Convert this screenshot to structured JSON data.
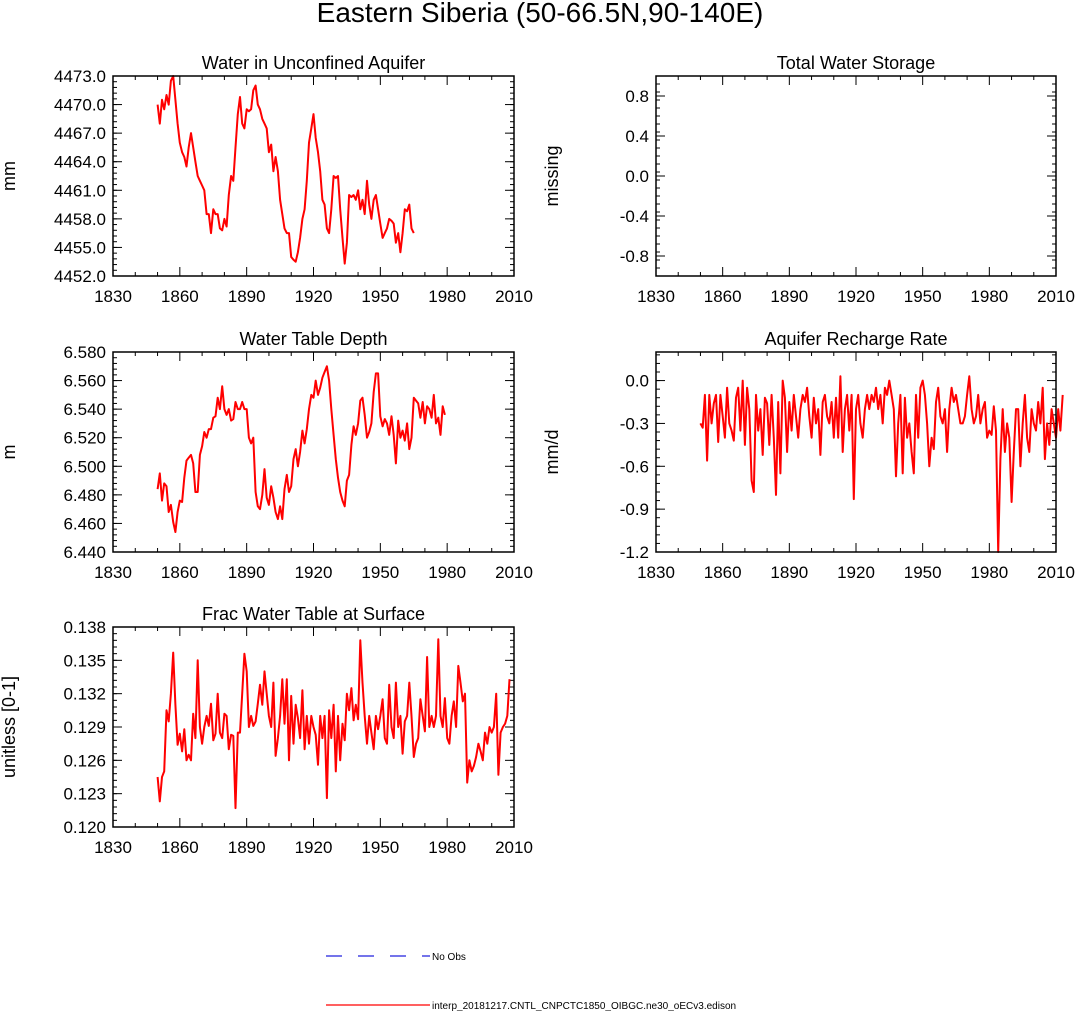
{
  "figure_title": "Eastern Siberia (50-66.5N,90-140E)",
  "legend": {
    "obs_label": "No Obs",
    "obs_color": "#2222dd",
    "model_label": "interp_20181217.CNTL_CNPCTC1850_OIBGC.ne30_oECv3.edison",
    "model_color": "#ff0000"
  },
  "chart_data": [
    {
      "type": "line",
      "title": "Water in Unconfined Aquifer",
      "ylabel": "mm",
      "xlim": [
        1830,
        2010
      ],
      "ylim": [
        4452.0,
        4473.0
      ],
      "xticks": [
        1830,
        1860,
        1890,
        1920,
        1950,
        1980,
        2010
      ],
      "yticks": [
        "4452.0",
        "4455.0",
        "4458.0",
        "4461.0",
        "4464.0",
        "4467.0",
        "4470.0",
        "4473.0"
      ],
      "series": [
        {
          "name": "interp_20181217.CNTL_CNPCTC1850_OIBGC.ne30_oECv3.edison",
          "start_year": 1850,
          "values": [
            4470.0,
            4468.0,
            4470.5,
            4469.5,
            4471.0,
            4470.0,
            4472.5,
            4473.0,
            4470.5,
            4468.0,
            4466.0,
            4465.0,
            4464.5,
            4463.5,
            4465.5,
            4467.0,
            4465.5,
            4464.0,
            4462.5,
            4462.0,
            4461.5,
            4461.0,
            4458.5,
            4458.5,
            4456.5,
            4459.0,
            4458.5,
            4458.5,
            4457.0,
            4456.8,
            4458.0,
            4457.2,
            4460.5,
            4462.5,
            4462.0,
            4465.5,
            4469.0,
            4470.8,
            4468.0,
            4467.5,
            4469.5,
            4469.3,
            4469.5,
            4471.5,
            4472.0,
            4470.0,
            4469.5,
            4468.5,
            4468.0,
            4467.5,
            4465.0,
            4465.8,
            4463.0,
            4464.5,
            4463.0,
            4460.0,
            4458.5,
            4457.0,
            4456.5,
            4456.5,
            4454.0,
            4453.7,
            4453.5,
            4454.5,
            4456.0,
            4458.0,
            4459.0,
            4462.0,
            4466.0,
            4467.5,
            4469.0,
            4466.5,
            4465.0,
            4463.0,
            4460.0,
            4459.5,
            4457.0,
            4456.5,
            4459.0,
            4462.5,
            4462.3,
            4462.5,
            4459.0,
            4456.0,
            4453.3,
            4455.5,
            4460.5,
            4460.3,
            4460.5,
            4460.0,
            4461.0,
            4459.0,
            4460.0,
            4458.5,
            4462.0,
            4459.5,
            4458.0,
            4460.0,
            4460.5,
            4459.0,
            4457.5,
            4456.0,
            4456.5,
            4457.0,
            4458.0,
            4457.8,
            4457.5,
            4455.5,
            4456.5,
            4454.5,
            4456.5,
            4459.0,
            4458.8,
            4459.5,
            4457.0,
            4456.5
          ]
        }
      ]
    },
    {
      "type": "line",
      "title": "Total Water Storage",
      "ylabel": "missing",
      "xlim": [
        1830,
        2010
      ],
      "ylim": [
        -1.0,
        1.0
      ],
      "xticks": [
        1830,
        1860,
        1890,
        1920,
        1950,
        1980,
        2010
      ],
      "yticks": [
        "-0.8",
        "-0.4",
        "0.0",
        "0.4",
        "0.8"
      ],
      "series": []
    },
    {
      "type": "line",
      "title": "Water Table Depth",
      "ylabel": "m",
      "xlim": [
        1830,
        2010
      ],
      "ylim": [
        6.44,
        6.58
      ],
      "xticks": [
        1830,
        1860,
        1890,
        1920,
        1950,
        1980,
        2010
      ],
      "yticks": [
        "6.440",
        "6.460",
        "6.480",
        "6.500",
        "6.520",
        "6.540",
        "6.560",
        "6.580"
      ],
      "series": [
        {
          "name": "interp_20181217.CNTL_CNPCTC1850_OIBGC.ne30_oECv3.edison",
          "start_year": 1850,
          "values": [
            6.484,
            6.495,
            6.476,
            6.488,
            6.486,
            6.468,
            6.473,
            6.461,
            6.454,
            6.468,
            6.476,
            6.475,
            6.492,
            6.504,
            6.506,
            6.508,
            6.502,
            6.482,
            6.482,
            6.508,
            6.514,
            6.524,
            6.52,
            6.526,
            6.526,
            6.534,
            6.535,
            6.548,
            6.54,
            6.556,
            6.54,
            6.536,
            6.54,
            6.532,
            6.533,
            6.545,
            6.54,
            6.54,
            6.545,
            6.54,
            6.54,
            6.52,
            6.516,
            6.52,
            6.482,
            6.472,
            6.47,
            6.48,
            6.498,
            6.478,
            6.473,
            6.486,
            6.478,
            6.468,
            6.463,
            6.472,
            6.463,
            6.484,
            6.494,
            6.482,
            6.486,
            6.505,
            6.512,
            6.5,
            6.51,
            6.525,
            6.516,
            6.526,
            6.54,
            6.55,
            6.548,
            6.56,
            6.55,
            6.555,
            6.562,
            6.566,
            6.57,
            6.56,
            6.54,
            6.522,
            6.505,
            6.492,
            6.482,
            6.476,
            6.472,
            6.49,
            6.494,
            6.515,
            6.528,
            6.522,
            6.53,
            6.546,
            6.548,
            6.536,
            6.52,
            6.524,
            6.53,
            6.552,
            6.565,
            6.565,
            6.535,
            6.528,
            6.533,
            6.53,
            6.522,
            6.535,
            6.522,
            6.502,
            6.532,
            6.52,
            6.525,
            6.518,
            6.53,
            6.512,
            6.52,
            6.548,
            6.546,
            6.544,
            6.534,
            6.545,
            6.53,
            6.542,
            6.54,
            6.534,
            6.55,
            6.53,
            6.534,
            6.522,
            6.542,
            6.536
          ]
        }
      ]
    },
    {
      "type": "line",
      "title": "Aquifer Recharge Rate",
      "ylabel": "mm/d",
      "xlim": [
        1830,
        2010
      ],
      "ylim": [
        -1.2,
        0.2
      ],
      "xticks": [
        1830,
        1860,
        1890,
        1920,
        1950,
        1980,
        2010
      ],
      "yticks": [
        "-1.2",
        "-0.9",
        "-0.6",
        "-0.3",
        "0.0"
      ],
      "series": [
        {
          "name": "interp_20181217.CNTL_CNPCTC1850_OIBGC.ne30_oECv3.edison",
          "start_year": 1850,
          "values": [
            -0.3,
            -0.33,
            -0.1,
            -0.56,
            -0.1,
            -0.3,
            -0.16,
            -0.1,
            -0.43,
            -0.1,
            -0.25,
            -0.4,
            -0.05,
            -0.3,
            -0.35,
            -0.42,
            -0.12,
            -0.05,
            -0.35,
            0.0,
            -0.45,
            -0.05,
            -0.2,
            -0.7,
            -0.78,
            -0.1,
            -0.35,
            -0.2,
            -0.52,
            -0.12,
            -0.16,
            -0.45,
            -0.1,
            -0.4,
            -0.8,
            -0.15,
            -0.65,
            0.0,
            -0.12,
            -0.5,
            -0.15,
            -0.35,
            -0.1,
            -0.25,
            -0.4,
            -0.2,
            -0.1,
            -0.15,
            -0.05,
            -0.25,
            -0.4,
            -0.12,
            -0.3,
            -0.2,
            -0.52,
            -0.15,
            -0.1,
            -0.25,
            -0.3,
            -0.15,
            -0.4,
            -0.12,
            -0.4,
            0.03,
            -0.5,
            -0.2,
            -0.1,
            -0.35,
            -0.1,
            -0.83,
            -0.2,
            -0.1,
            -0.3,
            -0.4,
            -0.2,
            -0.1,
            -0.2,
            -0.1,
            -0.15,
            -0.05,
            -0.2,
            -0.1,
            -0.3,
            -0.05,
            -0.1,
            0.0,
            -0.1,
            -0.2,
            -0.67,
            -0.3,
            -0.1,
            -0.65,
            -0.12,
            -0.4,
            -0.3,
            -0.5,
            -0.65,
            -0.1,
            -0.4,
            -0.05,
            0.0,
            -0.1,
            -0.3,
            -0.6,
            -0.4,
            -0.48,
            -0.15,
            -0.05,
            -0.25,
            -0.3,
            -0.2,
            -0.5,
            -0.2,
            -0.05,
            -0.15,
            -0.1,
            -0.2,
            -0.3,
            -0.3,
            -0.25,
            -0.1,
            0.03,
            -0.2,
            -0.3,
            -0.25,
            -0.1,
            -0.3,
            -0.2,
            -0.15,
            -0.4,
            -0.35,
            -0.38,
            -0.18,
            -0.35,
            -1.2,
            -0.55,
            -0.2,
            -0.5,
            -0.3,
            -0.4,
            -0.85,
            -0.5,
            -0.2,
            -0.2,
            -0.6,
            -0.3,
            -0.1,
            -0.4,
            -0.5,
            -0.2,
            -0.3,
            -0.35,
            -0.15,
            -0.3,
            -0.05,
            -0.55,
            -0.3,
            -0.45,
            -0.2,
            -0.3,
            -0.4,
            -0.2,
            -0.35,
            -0.1
          ]
        }
      ]
    },
    {
      "type": "line",
      "title": "Frac Water Table at Surface",
      "ylabel": "unitless [0-1]",
      "xlim": [
        1830,
        2010
      ],
      "ylim": [
        0.12,
        0.138
      ],
      "xticks": [
        1830,
        1860,
        1890,
        1920,
        1950,
        1980,
        2010
      ],
      "yticks": [
        "0.120",
        "0.123",
        "0.126",
        "0.129",
        "0.132",
        "0.135",
        "0.138"
      ],
      "series": [
        {
          "name": "interp_20181217.CNTL_CNPCTC1850_OIBGC.ne30_oECv3.edison",
          "start_year": 1850,
          "values": [
            0.1245,
            0.1223,
            0.1245,
            0.125,
            0.1305,
            0.1295,
            0.132,
            0.1357,
            0.131,
            0.1274,
            0.1284,
            0.1268,
            0.1288,
            0.126,
            0.1265,
            0.126,
            0.1302,
            0.128,
            0.135,
            0.129,
            0.1275,
            0.129,
            0.13,
            0.1291,
            0.1311,
            0.1278,
            0.1284,
            0.132,
            0.1285,
            0.128,
            0.1302,
            0.13,
            0.127,
            0.1283,
            0.1282,
            0.1217,
            0.1285,
            0.1285,
            0.132,
            0.1356,
            0.134,
            0.129,
            0.13,
            0.1291,
            0.1295,
            0.1311,
            0.1328,
            0.131,
            0.134,
            0.132,
            0.13,
            0.129,
            0.133,
            0.1264,
            0.128,
            0.13,
            0.1333,
            0.1293,
            0.1333,
            0.126,
            0.1318,
            0.1275,
            0.131,
            0.1298,
            0.128,
            0.1323,
            0.127,
            0.13,
            0.1275,
            0.13,
            0.129,
            0.1283,
            0.1256,
            0.13,
            0.128,
            0.13,
            0.1226,
            0.1305,
            0.128,
            0.131,
            0.125,
            0.13,
            0.126,
            0.1293,
            0.1278,
            0.132,
            0.1305,
            0.1325,
            0.1296,
            0.131,
            0.1297,
            0.1368,
            0.133,
            0.13,
            0.1275,
            0.13,
            0.1285,
            0.127,
            0.13,
            0.1288,
            0.13,
            0.1315,
            0.128,
            0.1275,
            0.1328,
            0.129,
            0.128,
            0.133,
            0.129,
            0.13,
            0.1266,
            0.1295,
            0.13,
            0.133,
            0.13,
            0.1263,
            0.1275,
            0.128,
            0.1315,
            0.13,
            0.1286,
            0.1353,
            0.129,
            0.13,
            0.129,
            0.13,
            0.1369,
            0.13,
            0.129,
            0.1316,
            0.128,
            0.1275,
            0.13,
            0.1313,
            0.129,
            0.1345,
            0.133,
            0.1313,
            0.132,
            0.124,
            0.126,
            0.125,
            0.1255,
            0.1263,
            0.1275,
            0.1268,
            0.126,
            0.1285,
            0.1275,
            0.129,
            0.1285,
            0.129,
            0.132,
            0.1247,
            0.1285,
            0.129,
            0.1293,
            0.13,
            0.1333
          ]
        }
      ]
    }
  ]
}
